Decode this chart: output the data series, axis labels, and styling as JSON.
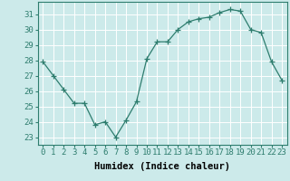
{
  "x": [
    0,
    1,
    2,
    3,
    4,
    5,
    6,
    7,
    8,
    9,
    10,
    11,
    12,
    13,
    14,
    15,
    16,
    17,
    18,
    19,
    20,
    21,
    22,
    23
  ],
  "y": [
    27.9,
    27.0,
    26.1,
    25.2,
    25.2,
    23.8,
    24.0,
    23.0,
    24.1,
    25.3,
    28.1,
    29.2,
    29.2,
    30.0,
    30.5,
    30.7,
    30.8,
    31.1,
    31.3,
    31.2,
    30.0,
    29.8,
    27.9,
    26.7
  ],
  "xlabel": "Humidex (Indice chaleur)",
  "xlim": [
    -0.5,
    23.5
  ],
  "ylim": [
    22.5,
    31.8
  ],
  "yticks": [
    23,
    24,
    25,
    26,
    27,
    28,
    29,
    30,
    31
  ],
  "xticks": [
    0,
    1,
    2,
    3,
    4,
    5,
    6,
    7,
    8,
    9,
    10,
    11,
    12,
    13,
    14,
    15,
    16,
    17,
    18,
    19,
    20,
    21,
    22,
    23
  ],
  "line_color": "#2e7d6e",
  "marker": "+",
  "marker_size": 4,
  "bg_color": "#cceaea",
  "grid_color": "#ffffff",
  "tick_fontsize": 6.5,
  "xlabel_fontsize": 7.5
}
